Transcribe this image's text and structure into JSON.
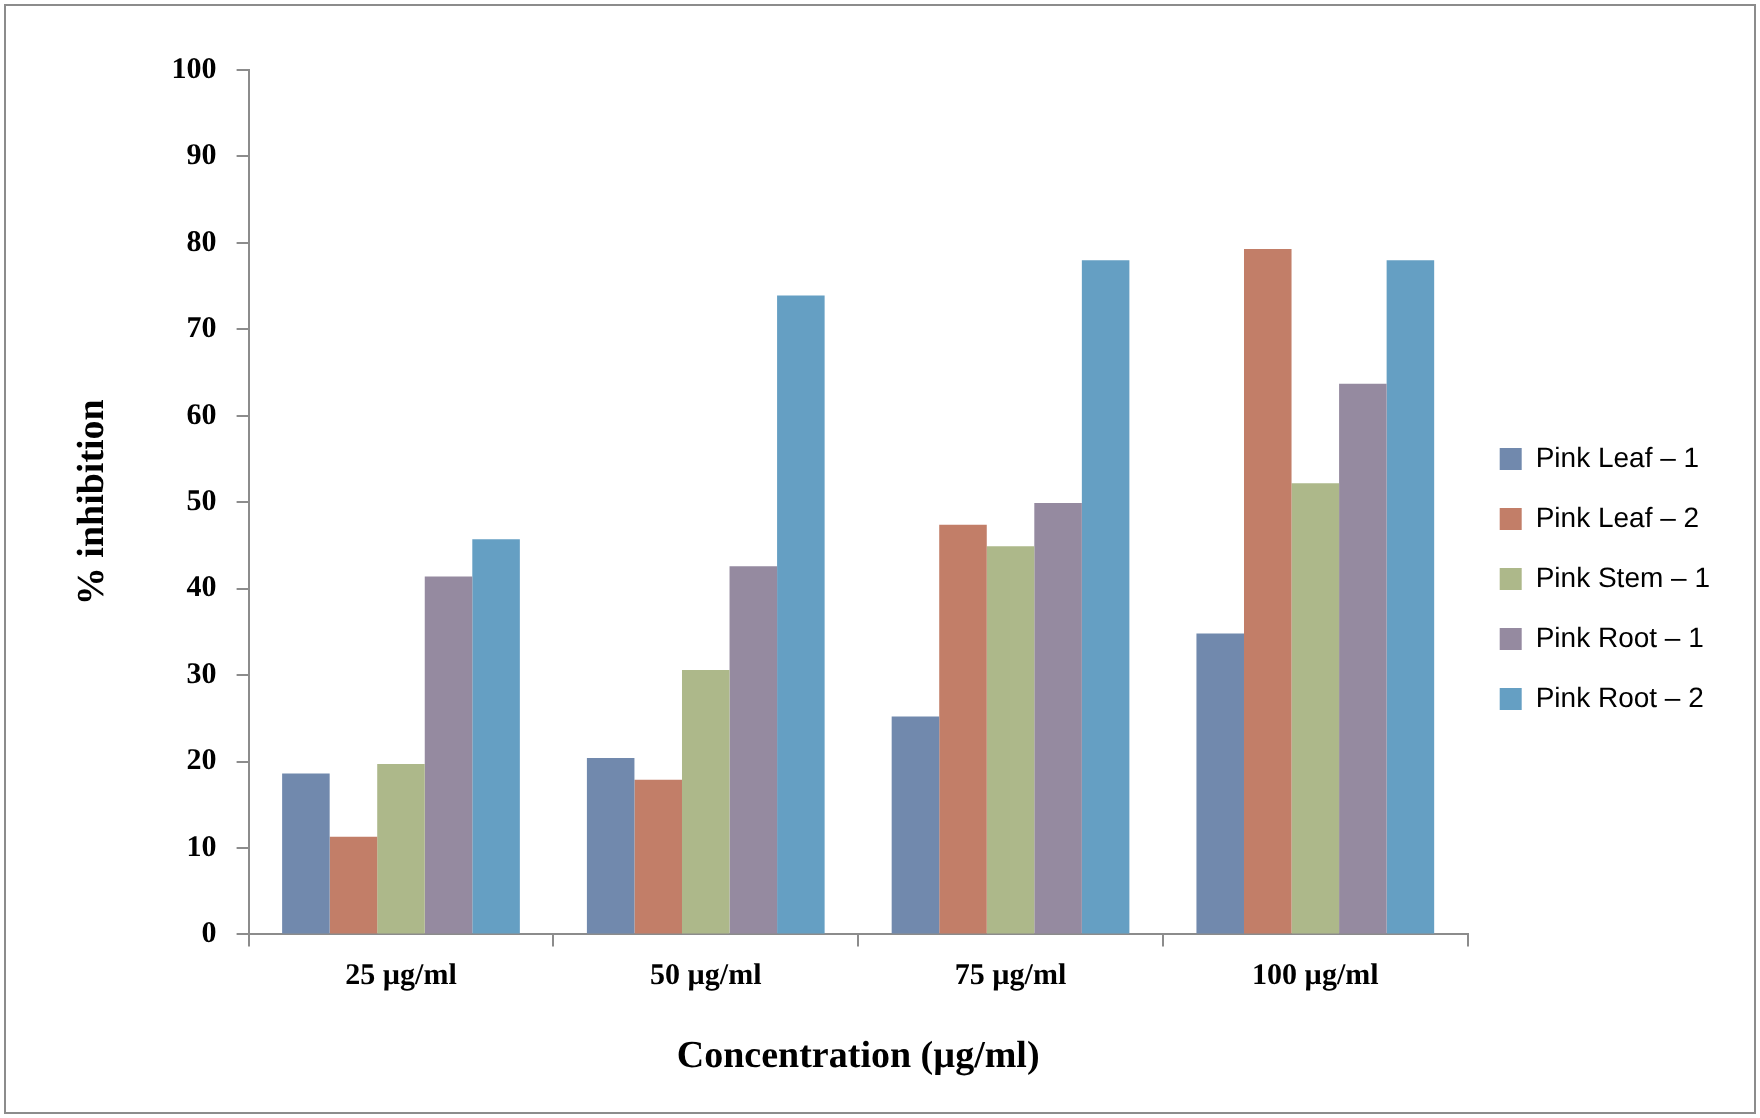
{
  "chart_data": {
    "type": "bar",
    "xlabel": "Concentration (µg/ml)",
    "ylabel": "% inhibition",
    "categories": [
      "25 µg/ml",
      "50 µg/ml",
      "75 µg/ml",
      "100 µg/ml"
    ],
    "series": [
      {
        "name": "Pink Leaf – 1",
        "color": "#7189ad",
        "values": [
          18.6,
          20.4,
          25.2,
          34.8
        ]
      },
      {
        "name": "Pink Leaf – 2",
        "color": "#c27e68",
        "values": [
          11.3,
          17.9,
          47.4,
          79.3
        ]
      },
      {
        "name": "Pink Stem – 1",
        "color": "#adb88a",
        "values": [
          19.7,
          30.6,
          44.9,
          52.2
        ]
      },
      {
        "name": "Pink Root – 1",
        "color": "#958aa0",
        "values": [
          41.4,
          42.6,
          49.9,
          63.7
        ]
      },
      {
        "name": "Pink Root – 2",
        "color": "#659fc3",
        "values": [
          45.7,
          73.9,
          78.0,
          78.0
        ]
      }
    ],
    "ylim": [
      0,
      100
    ],
    "yticks": [
      0,
      10,
      20,
      30,
      40,
      50,
      60,
      70,
      80,
      90,
      100
    ],
    "grid": false,
    "legend": "right"
  }
}
